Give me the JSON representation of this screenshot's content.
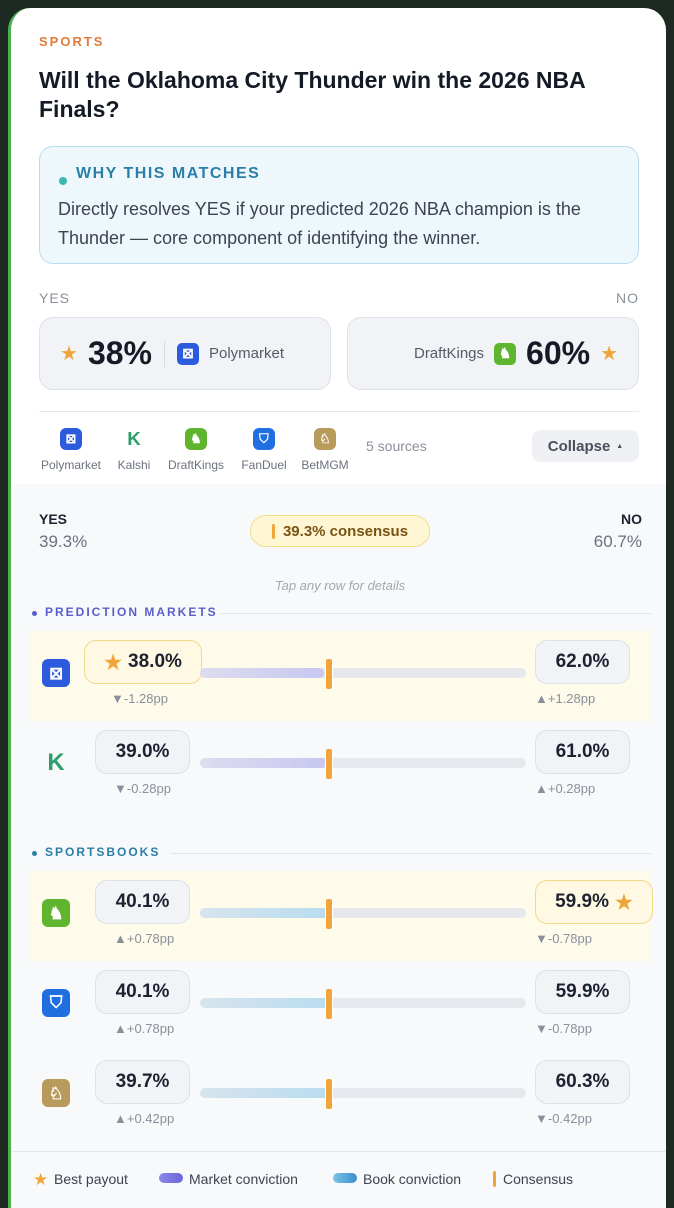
{
  "category": "SPORTS",
  "question": "Will the Oklahoma City Thunder win the 2026 NBA Finals?",
  "why": {
    "title": "WHY THIS MATCHES",
    "text": "Directly resolves YES if your predicted 2026 NBA champion is the Thunder — core component of identifying the winner."
  },
  "best": {
    "yes_label": "YES",
    "no_label": "NO",
    "yes": {
      "value": "38%",
      "source": "Polymarket"
    },
    "no": {
      "value": "60%",
      "source": "DraftKings"
    }
  },
  "sources": {
    "items": [
      {
        "name": "Polymarket"
      },
      {
        "name": "Kalshi",
        "icon": "K"
      },
      {
        "name": "DraftKings"
      },
      {
        "name": "FanDuel"
      },
      {
        "name": "BetMGM"
      }
    ],
    "count": "5 sources",
    "button": "Collapse"
  },
  "consensus": {
    "yes_label": "YES",
    "yes": "39.3%",
    "no_label": "NO",
    "no": "60.7%",
    "badge": "39.3% consensus",
    "hint": "Tap any row for details"
  },
  "groups": [
    {
      "title": "PREDICTION MARKETS",
      "color": "#5a5fc8",
      "bar": "#c8c7f1",
      "rows": [
        {
          "source": "polymarket",
          "yes": "38.0%",
          "yes_delta": "▼-1.28pp",
          "no": "62.0%",
          "no_delta": "▲+1.28pp",
          "best": "yes"
        },
        {
          "source": "kalshi",
          "icon": "K",
          "yes": "39.0%",
          "yes_delta": "▼-0.28pp",
          "no": "61.0%",
          "no_delta": "▲+0.28pp"
        }
      ]
    },
    {
      "title": "SPORTSBOOKS",
      "color": "#2a7fa8",
      "bar": "#b8dcef",
      "rows": [
        {
          "source": "draftkings",
          "yes": "40.1%",
          "yes_delta": "▲+0.78pp",
          "no": "59.9%",
          "no_delta": "▼-0.78pp",
          "best": "no"
        },
        {
          "source": "fanduel",
          "yes": "40.1%",
          "yes_delta": "▲+0.78pp",
          "no": "59.9%",
          "no_delta": "▼-0.78pp"
        },
        {
          "source": "betmgm",
          "yes": "39.7%",
          "yes_delta": "▲+0.42pp",
          "no": "60.3%",
          "no_delta": "▼-0.42pp"
        }
      ]
    }
  ],
  "legend": [
    "Best payout",
    "Market conviction",
    "Book conviction",
    "Consensus"
  ]
}
